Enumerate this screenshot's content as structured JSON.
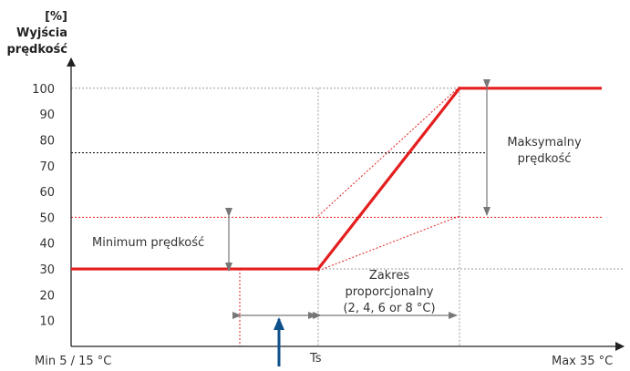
{
  "chart_data": {
    "type": "line",
    "title": "",
    "ylabel_lines": [
      "[%]",
      "Wyjścia",
      "prędkość"
    ],
    "ylim": [
      0,
      100
    ],
    "yticks": [
      10,
      20,
      30,
      40,
      50,
      60,
      70,
      80,
      90,
      100
    ],
    "x_labels": {
      "min": "Min 5 / 15 °C",
      "ts": "Ts",
      "max": "Max 35 °C"
    },
    "series": [
      {
        "color": "#e41e1e",
        "points": [
          {
            "x": "Min 5 / 15 °C",
            "y": 30
          },
          {
            "x": "Ts",
            "y": 30
          },
          {
            "x": "Ts + zakres proporcjonalny",
            "y": 100
          },
          {
            "x": "Max 35 °C",
            "y": 100
          }
        ]
      }
    ],
    "reference_lines": [
      {
        "y": 100,
        "color": "#999999"
      },
      {
        "y": 75,
        "color": "#000000"
      },
      {
        "y": 50,
        "color": "#e41e1e"
      },
      {
        "y": 30,
        "color": "#999999"
      }
    ],
    "annotations": {
      "min_speed": "Minimum prędkość",
      "max_speed_line1": "Maksymalny",
      "max_speed_line2": "prędkość",
      "prop_range_line1": "Zakres",
      "prop_range_line2": "proporcjonalny",
      "prop_range_line3": "(2, 4, 6 or 8 °C)"
    },
    "colors": {
      "main": "#e41e1e",
      "arrow": "#777777",
      "setpoint_arrow": "#0d4f8b",
      "axis": "#222222"
    }
  }
}
